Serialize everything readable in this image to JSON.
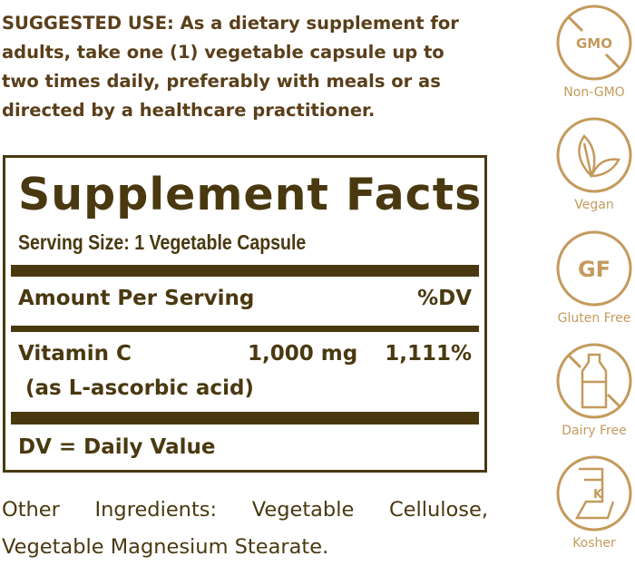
{
  "suggested_use": "SUGGESTED USE: As a dietary supplement for adults, take one (1) vegetable capsule up to two times daily, preferably with meals or as directed by a healthcare practitioner.",
  "facts": {
    "title": "Supplement Facts",
    "serving_size": "Serving Size: 1 Vegetable Capsule",
    "header_left": "Amount Per Serving",
    "header_right": "%DV",
    "nutrient": {
      "name": "Vitamin C",
      "amount": "1,000 mg",
      "dv": "1,111%",
      "form": "(as L-ascorbic acid)"
    },
    "footnote": "DV = Daily Value"
  },
  "other_ingredients": "Other Ingredients: Vegetable Cellulose, Vegetable Magnesium Stearate.",
  "badges": [
    {
      "label": "Non-GMO",
      "icon": "no-gmo-icon",
      "text": "GMO"
    },
    {
      "label": "Vegan",
      "icon": "leaf-icon"
    },
    {
      "label": "Gluten Free",
      "icon": "gluten-free-icon",
      "text": "GF"
    },
    {
      "label": "Dairy Free",
      "icon": "no-milk-bottle-icon"
    },
    {
      "label": "Kosher",
      "icon": "kosher-icon",
      "text": "K"
    }
  ],
  "colors": {
    "text": "#4a3910",
    "icon": "#c49a5c"
  }
}
